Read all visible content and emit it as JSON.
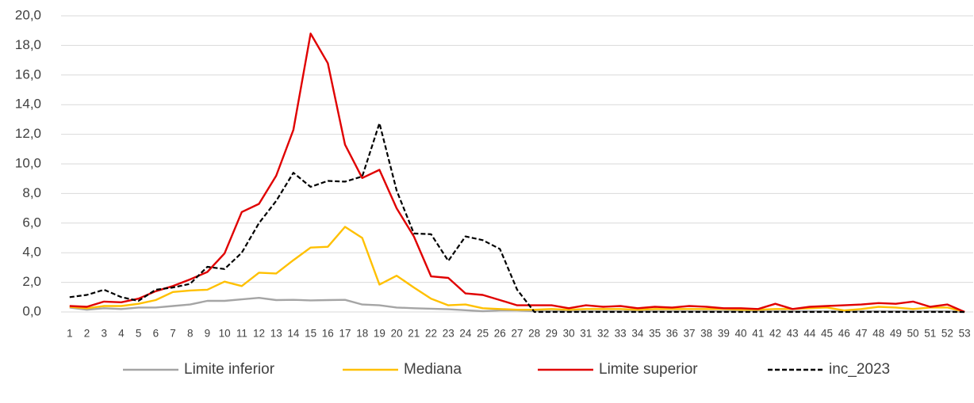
{
  "chart_data": {
    "type": "line",
    "categories": [
      "1",
      "2",
      "3",
      "4",
      "5",
      "6",
      "7",
      "8",
      "9",
      "10",
      "11",
      "12",
      "13",
      "14",
      "15",
      "16",
      "17",
      "18",
      "19",
      "20",
      "21",
      "22",
      "23",
      "24",
      "25",
      "26",
      "27",
      "28",
      "29",
      "30",
      "31",
      "32",
      "33",
      "34",
      "35",
      "36",
      "37",
      "38",
      "39",
      "40",
      "41",
      "42",
      "43",
      "44",
      "45",
      "46",
      "47",
      "48",
      "49",
      "50",
      "51",
      "52",
      "53"
    ],
    "series": [
      {
        "name": "Limite inferior",
        "color": "#a5a5a5",
        "style": "solid",
        "values": [
          0.3,
          0.15,
          0.25,
          0.2,
          0.3,
          0.3,
          0.4,
          0.5,
          0.75,
          0.75,
          0.85,
          0.95,
          0.8,
          0.82,
          0.78,
          0.8,
          0.82,
          0.5,
          0.45,
          0.3,
          0.25,
          0.22,
          0.18,
          0.12,
          0.05,
          0.1,
          0.1,
          0.05,
          0.05,
          0.05,
          0.05,
          0.05,
          0.05,
          0.05,
          0.05,
          0.05,
          0.05,
          0.05,
          0.05,
          0.05,
          0.05,
          0.05,
          0.05,
          0.05,
          0.05,
          0.05,
          0.05,
          0.05,
          0.05,
          0.05,
          0.05,
          0.05,
          0
        ]
      },
      {
        "name": "Mediana",
        "color": "#ffc000",
        "style": "solid",
        "values": [
          0.35,
          0.25,
          0.4,
          0.4,
          0.55,
          0.8,
          1.35,
          1.45,
          1.5,
          2.05,
          1.75,
          2.65,
          2.6,
          3.5,
          4.35,
          4.4,
          5.75,
          5.0,
          1.85,
          2.45,
          1.65,
          0.9,
          0.45,
          0.5,
          0.25,
          0.2,
          0.15,
          0.15,
          0.2,
          0.15,
          0.2,
          0.2,
          0.2,
          0.15,
          0.2,
          0.2,
          0.2,
          0.2,
          0.2,
          0.15,
          0.15,
          0.2,
          0.2,
          0.25,
          0.3,
          0.1,
          0.2,
          0.35,
          0.3,
          0.2,
          0.3,
          0.3,
          0
        ]
      },
      {
        "name": "Limite superior",
        "color": "#e00000",
        "style": "solid",
        "values": [
          0.4,
          0.35,
          0.7,
          0.65,
          0.9,
          1.4,
          1.75,
          2.2,
          2.7,
          3.95,
          6.75,
          7.3,
          9.2,
          12.3,
          18.8,
          16.8,
          11.3,
          9.05,
          9.6,
          7.0,
          5.1,
          2.4,
          2.3,
          1.25,
          1.15,
          0.8,
          0.45,
          0.45,
          0.45,
          0.25,
          0.45,
          0.35,
          0.4,
          0.25,
          0.35,
          0.3,
          0.4,
          0.35,
          0.25,
          0.25,
          0.2,
          0.55,
          0.2,
          0.35,
          0.4,
          0.45,
          0.5,
          0.6,
          0.55,
          0.7,
          0.35,
          0.5,
          0
        ]
      },
      {
        "name": "inc_2023",
        "color": "#000000",
        "style": "dashed",
        "values": [
          1.0,
          1.15,
          1.5,
          1.0,
          0.75,
          1.5,
          1.65,
          1.9,
          3.05,
          2.9,
          4.0,
          6.0,
          7.5,
          9.4,
          8.45,
          8.85,
          8.8,
          9.15,
          12.75,
          8.2,
          5.3,
          5.25,
          3.45,
          5.1,
          4.85,
          4.25,
          1.5,
          0,
          0,
          0,
          0,
          0,
          0,
          0,
          0,
          0,
          0,
          0,
          0,
          0,
          0,
          0,
          0,
          0,
          0,
          0,
          0,
          0,
          0,
          0,
          0,
          0,
          0
        ]
      }
    ],
    "ylim": [
      0,
      20
    ],
    "yticks": [
      {
        "value": 0,
        "label": "0,0"
      },
      {
        "value": 2,
        "label": "2,0"
      },
      {
        "value": 4,
        "label": "4,0"
      },
      {
        "value": 6,
        "label": "6,0"
      },
      {
        "value": 8,
        "label": "8,0"
      },
      {
        "value": 10,
        "label": "10,0"
      },
      {
        "value": 12,
        "label": "12,0"
      },
      {
        "value": 14,
        "label": "14,0"
      },
      {
        "value": 16,
        "label": "16,0"
      },
      {
        "value": 18,
        "label": "18,0"
      },
      {
        "value": 20,
        "label": "20,0"
      }
    ],
    "grid": true,
    "legend": "bottom"
  }
}
